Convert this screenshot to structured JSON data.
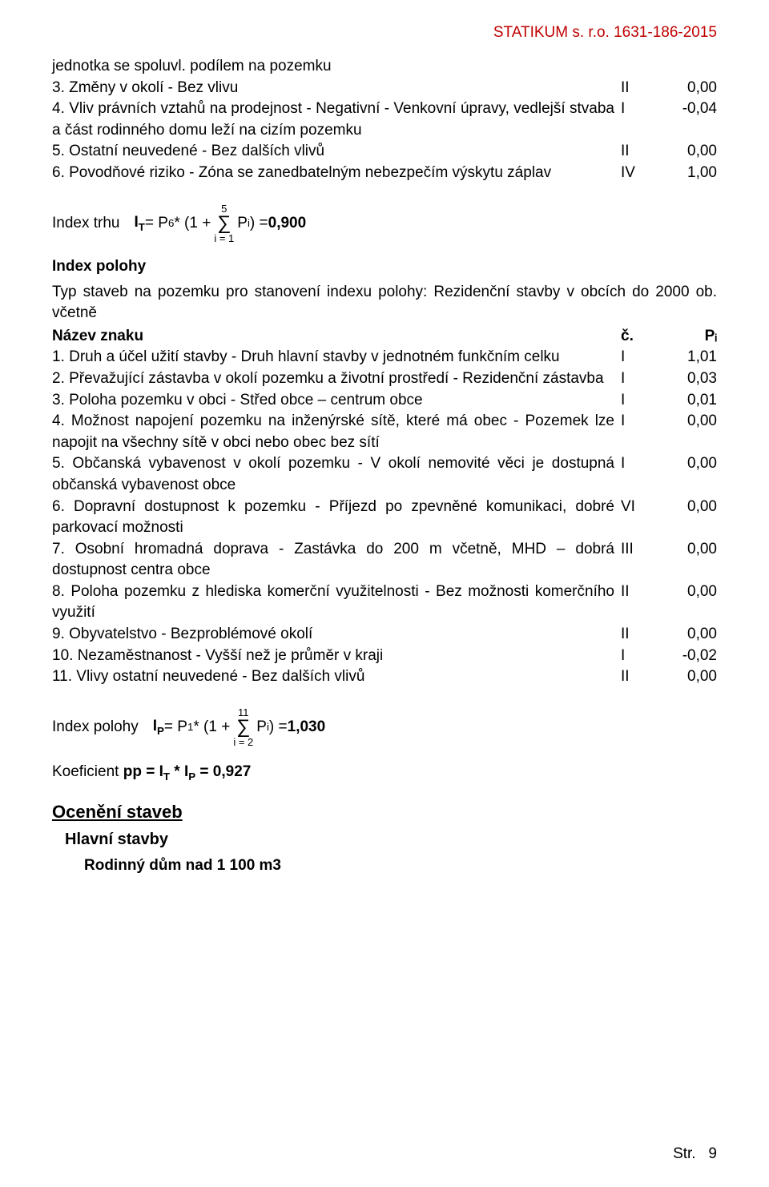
{
  "header": "STATIKUM s. r.o. 1631-186-2015",
  "rows1": [
    {
      "desc": "jednotka se spoluvl. podílem na pozemku",
      "c": "",
      "p": ""
    },
    {
      "desc": "3. Změny v okolí - Bez vlivu",
      "c": "II",
      "p": "0,00"
    },
    {
      "desc": "4. Vliv právních vztahů na prodejnost - Negativní - Venkovní úpravy, vedlejší stvaba a část rodinného domu leží na cizím pozemku",
      "c": "I",
      "p": "-0,04"
    },
    {
      "desc": "5. Ostatní neuvedené - Bez dalších vlivů",
      "c": "II",
      "p": "0,00"
    },
    {
      "desc": "6. Povodňové riziko - Zóna se zanedbatelným nebezpečím výskytu záplav",
      "c": "IV",
      "p": "1,00"
    }
  ],
  "formula1": {
    "label": "Index trhu",
    "lhs": "I",
    "lhs_sub": "T",
    "p6": " = P",
    "p6_sub": "6",
    "middle": " * (1 + ",
    "upper": "5",
    "lower": "i = 1",
    "pi": " P",
    "pi_sub": "i",
    "close": ") = ",
    "result": "0,900"
  },
  "index_polohy_label": "Index polohy",
  "typ_staveb": "Typ staveb na pozemku pro stanovení indexu polohy: Rezidenční stavby v obcích do 2000 ob. včetně",
  "table_header": {
    "desc": "Název znaku",
    "c": "č.",
    "p": "Pᵢ"
  },
  "rows2": [
    {
      "desc": "1. Druh a účel užití stavby - Druh hlavní stavby v jednotném funkčním celku",
      "c": "I",
      "p": "1,01"
    },
    {
      "desc": "2. Převažující zástavba v okolí pozemku a životní prostředí - Rezidenční zástavba",
      "c": "I",
      "p": "0,03"
    },
    {
      "desc": "3. Poloha pozemku v obci - Střed obce – centrum obce",
      "c": "I",
      "p": "0,01"
    },
    {
      "desc": "4. Možnost napojení pozemku na inženýrské sítě, které má obec - Pozemek lze napojit na všechny sítě v obci nebo obec bez sítí",
      "c": "I",
      "p": "0,00"
    },
    {
      "desc": "5. Občanská vybavenost v okolí pozemku - V okolí nemovité věci je dostupná občanská vybavenost obce",
      "c": "I",
      "p": "0,00"
    },
    {
      "desc": "6. Dopravní dostupnost k pozemku - Příjezd po zpevněné komunikaci, dobré parkovací možnosti",
      "c": "VI",
      "p": "0,00"
    },
    {
      "desc": "7. Osobní hromadná doprava - Zastávka do 200 m včetně, MHD – dobrá dostupnost centra obce",
      "c": "III",
      "p": "0,00"
    },
    {
      "desc": "8. Poloha pozemku z hlediska komerční využitelnosti - Bez možnosti komerčního využití",
      "c": "II",
      "p": "0,00"
    },
    {
      "desc": "9. Obyvatelstvo - Bezproblémové okolí",
      "c": "II",
      "p": "0,00"
    },
    {
      "desc": "10. Nezaměstnanost - Vyšší než je průměr v kraji",
      "c": "I",
      "p": "-0,02"
    },
    {
      "desc": "11. Vlivy ostatní neuvedené - Bez dalších vlivů",
      "c": "II",
      "p": "0,00"
    }
  ],
  "formula2": {
    "label": "Index polohy",
    "lhs": "I",
    "lhs_sub": "P",
    "p1": " = P",
    "p1_sub": "1",
    "middle": " * (1 + ",
    "upper": "11",
    "lower": "i = 2",
    "pi": " P",
    "pi_sub": "i",
    "close": ") = ",
    "result": "1,030"
  },
  "koef_label": "Koeficient ",
  "koef_bold": "pp = Iᴛ * Iᴘ = 0,927",
  "koef_pp": "pp",
  "koef_eq": " = I",
  "koef_t": "T",
  "koef_star": " * I",
  "koef_p": "P",
  "koef_res_eq": " = ",
  "koef_res": "0,927",
  "h2": "Ocenění staveb",
  "h3": "Hlavní stavby",
  "h4": "Rodinný dům nad 1 100 m3",
  "footer_label": "Str.",
  "footer_page": "9"
}
